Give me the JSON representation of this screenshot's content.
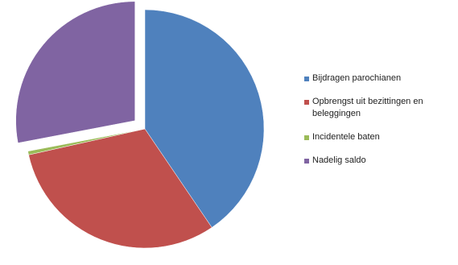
{
  "chart_data": {
    "type": "pie",
    "categories": [
      "Bijdragen parochianen",
      "Opbrengst uit bezittingen en beleggingen",
      "Incidentele baten",
      "Nadelig saldo"
    ],
    "values": [
      40.5,
      31,
      0.5,
      28
    ],
    "colors": [
      "#4f81bd",
      "#c0504d",
      "#9bbb59",
      "#8064a2"
    ],
    "exploded": [
      false,
      false,
      false,
      true
    ],
    "legend": "right"
  }
}
